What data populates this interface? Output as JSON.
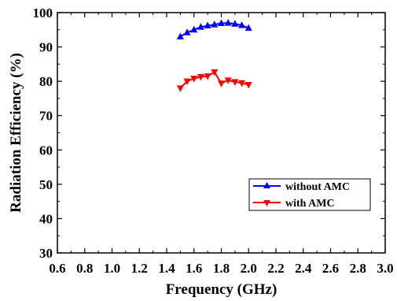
{
  "chart_data": {
    "type": "line",
    "xlabel": "Frequency (GHz)",
    "ylabel": "Radiation Efficiency (%)",
    "xlim": [
      0.6,
      3.0
    ],
    "ylim": [
      30,
      100
    ],
    "xticks": [
      0.6,
      0.8,
      1.0,
      1.2,
      1.4,
      1.6,
      1.8,
      2.0,
      2.2,
      2.4,
      2.6,
      2.8,
      3.0
    ],
    "xtick_labels": [
      "0.6",
      "0.8",
      "1.0",
      "1.2",
      "1.4",
      "1.6",
      "1.8",
      "2.0",
      "2.2",
      "2.4",
      "2.6",
      "2.8",
      "3.0"
    ],
    "yticks": [
      30,
      40,
      50,
      60,
      70,
      80,
      90,
      100
    ],
    "ytick_labels": [
      "30",
      "40",
      "50",
      "60",
      "70",
      "80",
      "90",
      "100"
    ],
    "grid": false,
    "legend": "lower-right",
    "series": [
      {
        "name": "without AMC",
        "color": "#0000ff",
        "marker": "triangle-up",
        "x": [
          1.5,
          1.55,
          1.6,
          1.65,
          1.7,
          1.75,
          1.8,
          1.85,
          1.9,
          1.95,
          2.0
        ],
        "y": [
          93.0,
          94.2,
          95.0,
          95.8,
          96.2,
          96.5,
          96.9,
          97.0,
          96.7,
          96.3,
          95.5
        ]
      },
      {
        "name": "with AMC",
        "color": "#ff0000",
        "marker": "triangle-down",
        "x": [
          1.5,
          1.55,
          1.6,
          1.65,
          1.7,
          1.75,
          1.8,
          1.85,
          1.9,
          1.95,
          2.0
        ],
        "y": [
          78.0,
          80.0,
          80.8,
          81.3,
          81.5,
          82.7,
          79.4,
          80.3,
          79.8,
          79.5,
          79.0
        ]
      }
    ]
  }
}
